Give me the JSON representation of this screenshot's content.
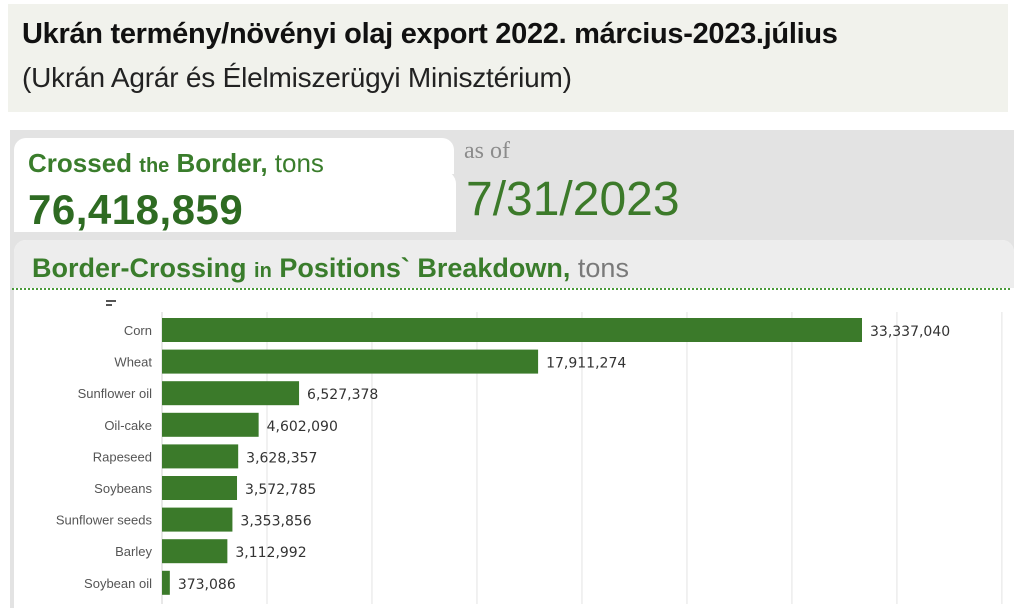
{
  "header": {
    "title": "Ukrán termény/növényi olaj export 2022. március-2023.július",
    "subtitle": "(Ukrán Agrár és Élelmiszerügyi Minisztérium)"
  },
  "kpi": {
    "label_word1": "Crossed",
    "label_word2": "the",
    "label_word3": "Border,",
    "label_unit": "tons",
    "value": "76,418,859",
    "as_of_label": "as of",
    "as_of_date": "7/31/2023"
  },
  "breakdown": {
    "title_part1": "Border-Crossing",
    "title_part2": "in",
    "title_part3": "Positions` Breakdown,",
    "title_unit": "tons"
  },
  "colors": {
    "bar": "#3b7a2a",
    "text_green": "#3a7d2c",
    "grid": "#e3e3e3"
  },
  "chart_data": {
    "type": "bar",
    "orientation": "horizontal",
    "categories": [
      "Corn",
      "Wheat",
      "Sunflower oil",
      "Oil-cake",
      "Rapeseed",
      "Soybeans",
      "Sunflower seeds",
      "Barley",
      "Soybean oil"
    ],
    "values": [
      33337040,
      17911274,
      6527378,
      4602090,
      3628357,
      3572785,
      3353856,
      3112992,
      373086
    ],
    "value_labels": [
      "33,337,040",
      "17,911,274",
      "6,527,378",
      "4,602,090",
      "3,628,357",
      "3,572,785",
      "3,353,856",
      "3,112,992",
      "373,086"
    ],
    "xlim": [
      0,
      40000000
    ],
    "grid": true,
    "legend": "none"
  }
}
